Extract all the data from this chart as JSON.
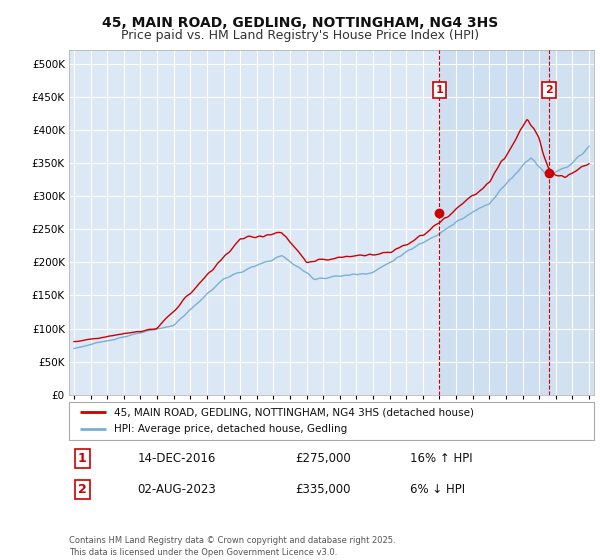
{
  "title": "45, MAIN ROAD, GEDLING, NOTTINGHAM, NG4 3HS",
  "subtitle": "Price paid vs. HM Land Registry's House Price Index (HPI)",
  "ylim": [
    0,
    520000
  ],
  "yticks": [
    0,
    50000,
    100000,
    150000,
    200000,
    250000,
    300000,
    350000,
    400000,
    450000,
    500000
  ],
  "xlim_start": 1994.7,
  "xlim_end": 2026.3,
  "marker1_x": 2017.0,
  "marker1_y": 275000,
  "marker1_label": "1",
  "marker2_x": 2023.6,
  "marker2_y": 335000,
  "marker2_label": "2",
  "legend_line1": "45, MAIN ROAD, GEDLING, NOTTINGHAM, NG4 3HS (detached house)",
  "legend_line2": "HPI: Average price, detached house, Gedling",
  "table_row1": [
    "1",
    "14-DEC-2016",
    "£275,000",
    "16% ↑ HPI"
  ],
  "table_row2": [
    "2",
    "02-AUG-2023",
    "£335,000",
    "6% ↓ HPI"
  ],
  "footnote": "Contains HM Land Registry data © Crown copyright and database right 2025.\nThis data is licensed under the Open Government Licence v3.0.",
  "line_color_red": "#cc0000",
  "line_color_blue": "#7ab0d4",
  "background_color": "#dce8f5",
  "shaded_color": "#c8dcf0",
  "grid_color": "#ffffff",
  "dashed_line_color": "#cc0000",
  "title_fontsize": 10,
  "subtitle_fontsize": 9
}
